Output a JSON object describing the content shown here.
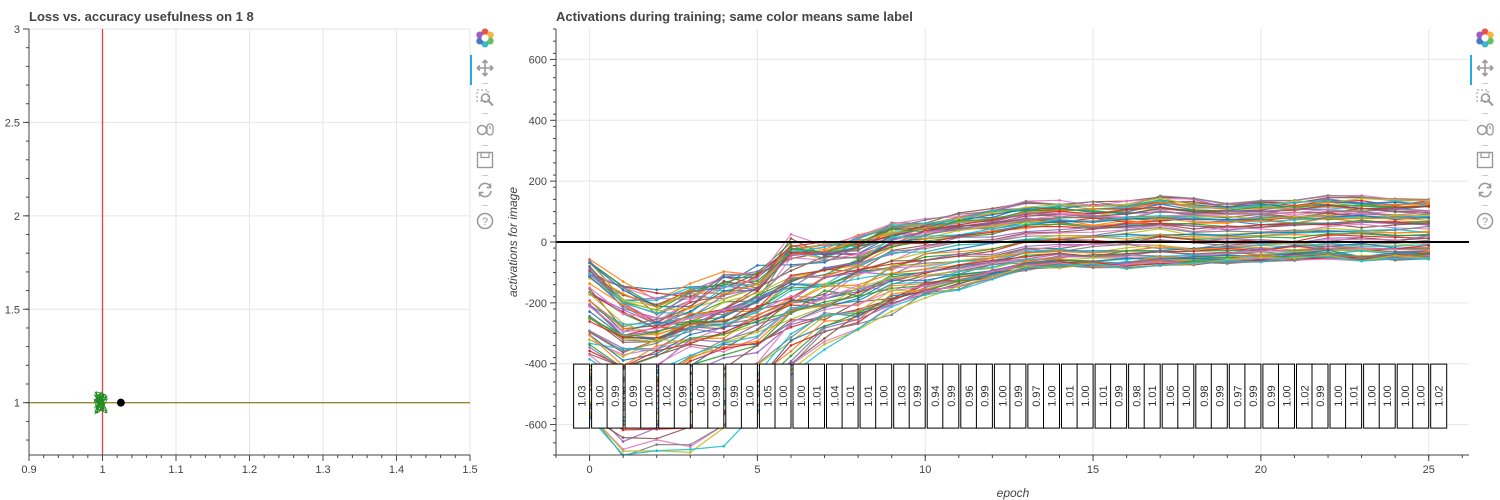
{
  "chart_data": [
    {
      "type": "scatter",
      "title": "Loss vs. accuracy usefulness on 1 8",
      "xlabel": "",
      "ylabel": "",
      "xlim": [
        0.9,
        1.5
      ],
      "ylim": [
        0.72,
        3.0
      ],
      "x_ticks": [
        0.9,
        1,
        1.1,
        1.2,
        1.3,
        1.4,
        1.5
      ],
      "y_ticks": [
        1,
        1.5,
        2,
        2.5,
        3
      ],
      "vline_x": 1.0,
      "hline_y": 1.0,
      "point": {
        "x": 1.025,
        "y": 1.0
      },
      "cluster_center": {
        "x": 0.998,
        "y": 1.0
      },
      "grid": true,
      "colors": {
        "vline": "#d44",
        "hline": "#998833",
        "cluster": "#228b22",
        "point": "#000000"
      }
    },
    {
      "type": "line",
      "title": "Activations during training; same color means same label",
      "xlabel": "epoch",
      "ylabel": "activations for image",
      "xlim": [
        -1,
        26.2
      ],
      "ylim": [
        -700,
        700
      ],
      "x_ticks": [
        0,
        5,
        10,
        15,
        20,
        25
      ],
      "y_ticks": [
        -600,
        -400,
        -200,
        0,
        200,
        400,
        600
      ],
      "zero_line": 0,
      "grid": true,
      "epochs": [
        0,
        1,
        2,
        3,
        4,
        5,
        6,
        7,
        8,
        9,
        10,
        11,
        12,
        13,
        14,
        15,
        16,
        17,
        18,
        19,
        20,
        21,
        22,
        23,
        24,
        25
      ],
      "series_count": 80,
      "representative_series": [
        {
          "values": [
            -80,
            -150,
            -180,
            -150,
            -120,
            -100,
            -60,
            -40,
            -10,
            20,
            30,
            40,
            50,
            60,
            60,
            60,
            60,
            60,
            60,
            60,
            65,
            70,
            70,
            70,
            70,
            70
          ]
        },
        {
          "values": [
            -100,
            -200,
            -250,
            -200,
            -160,
            -140,
            0,
            -20,
            10,
            50,
            70,
            90,
            110,
            130,
            130,
            128,
            130,
            150,
            140,
            130,
            140,
            140,
            150,
            145,
            140,
            140
          ]
        },
        {
          "values": [
            -200,
            -300,
            -290,
            -260,
            -240,
            -200,
            -120,
            -100,
            -60,
            -20,
            0,
            20,
            30,
            50,
            55,
            55,
            60,
            70,
            60,
            60,
            60,
            60,
            70,
            70,
            70,
            70
          ]
        },
        {
          "values": [
            -300,
            -350,
            -330,
            -300,
            -280,
            -240,
            -180,
            -160,
            -130,
            -100,
            -80,
            -60,
            -50,
            -30,
            -25,
            -25,
            -20,
            -15,
            -20,
            -15,
            -10,
            -10,
            -5,
            -5,
            -5,
            -5
          ]
        },
        {
          "values": [
            -450,
            -500,
            -480,
            -420,
            -380,
            -330,
            -260,
            -230,
            -200,
            -170,
            -140,
            -120,
            -100,
            -80,
            -70,
            -70,
            -70,
            -60,
            -60,
            -60,
            -55,
            -50,
            -45,
            -50,
            -50,
            -45
          ]
        },
        {
          "values": [
            -600,
            -700,
            -700,
            -700,
            -650,
            -560,
            -420,
            -330,
            -270,
            -220,
            -180,
            -150,
            -120,
            -90,
            -80,
            -80,
            -80,
            -70,
            -70,
            -65,
            -60,
            -55,
            -50,
            -55,
            -50,
            -50
          ]
        }
      ],
      "label_groups": [
        {
          "x": 0,
          "labels": [
            "1.03",
            "1.00"
          ]
        },
        {
          "x": 1,
          "labels": [
            "0.99",
            "0.99"
          ]
        },
        {
          "x": 2,
          "labels": [
            "1.00",
            "1.02"
          ]
        },
        {
          "x": 3,
          "labels": [
            "0.99",
            "1.00"
          ]
        },
        {
          "x": 4,
          "labels": [
            "0.99",
            "0.99"
          ]
        },
        {
          "x": 5,
          "labels": [
            "1.00",
            "1.05"
          ]
        },
        {
          "x": 6,
          "labels": [
            "1.00",
            "1.00"
          ]
        },
        {
          "x": 7,
          "labels": [
            "1.01",
            "1.04"
          ]
        },
        {
          "x": 8,
          "labels": [
            "1.01",
            "1.01"
          ]
        },
        {
          "x": 9,
          "labels": [
            "1.00",
            "1.03"
          ]
        },
        {
          "x": 10,
          "labels": [
            "0.99",
            "0.94"
          ]
        },
        {
          "x": 11,
          "labels": [
            "0.99",
            "0.96"
          ]
        },
        {
          "x": 12,
          "labels": [
            "0.99",
            "1.00"
          ]
        },
        {
          "x": 13,
          "labels": [
            "0.99",
            "0.97"
          ]
        },
        {
          "x": 14,
          "labels": [
            "1.00",
            "1.01"
          ]
        },
        {
          "x": 15,
          "labels": [
            "1.00",
            "1.01"
          ]
        },
        {
          "x": 16,
          "labels": [
            "0.99",
            "0.98"
          ]
        },
        {
          "x": 17,
          "labels": [
            "1.01",
            "1.06"
          ]
        },
        {
          "x": 18,
          "labels": [
            "1.00",
            "0.98"
          ]
        },
        {
          "x": 19,
          "labels": [
            "0.99",
            "0.97"
          ]
        },
        {
          "x": 20,
          "labels": [
            "0.99",
            "0.99"
          ]
        },
        {
          "x": 21,
          "labels": [
            "1.00",
            "1.02"
          ]
        },
        {
          "x": 22,
          "labels": [
            "0.99",
            "1.00"
          ]
        },
        {
          "x": 23,
          "labels": [
            "1.01",
            "1.00"
          ]
        },
        {
          "x": 24,
          "labels": [
            "1.00",
            "1.00"
          ]
        },
        {
          "x": 25,
          "labels": [
            "1.00",
            "1.02"
          ]
        }
      ],
      "palette": [
        "#1f77b4",
        "#ff7f0e",
        "#2ca02c",
        "#d62728",
        "#9467bd",
        "#8c564b",
        "#e377c2",
        "#7f7f7f",
        "#bcbd22",
        "#17becf"
      ]
    }
  ],
  "toolbar": {
    "items": [
      {
        "icon": "bokeh-logo-icon"
      },
      {
        "icon": "pan-icon",
        "active": true
      },
      {
        "icon": "box-zoom-icon"
      },
      {
        "icon": "wheel-zoom-icon"
      },
      {
        "icon": "save-icon"
      },
      {
        "icon": "reset-icon"
      },
      {
        "icon": "help-icon"
      }
    ],
    "active_color": "#26aae1",
    "icon_color": "#a6a6a6"
  }
}
